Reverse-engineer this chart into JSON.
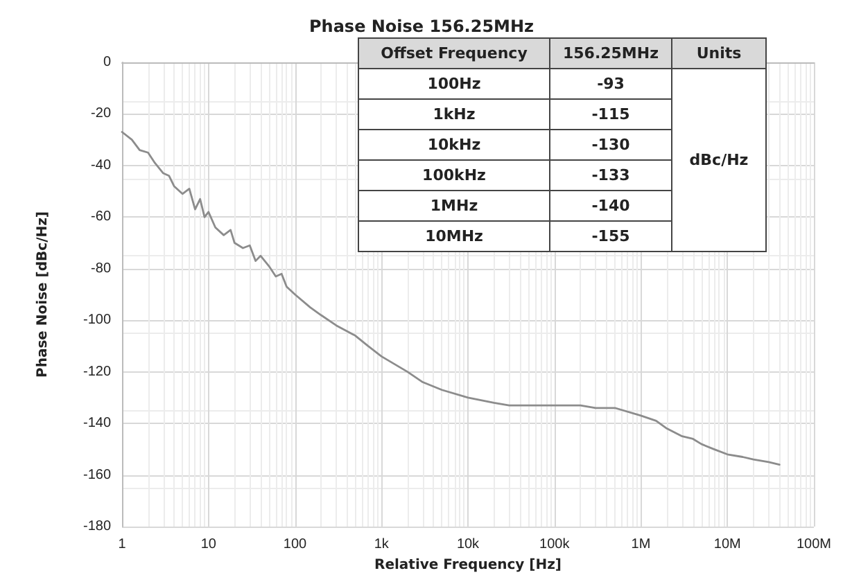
{
  "chart_data": {
    "type": "line",
    "title": "Phase Noise 156.25MHz",
    "xlabel": "Relative Frequency [Hz]",
    "ylabel": "Phase Noise [dBc/Hz]",
    "series": [
      {
        "color": "#8c8c8c",
        "x": [
          1,
          1.3,
          1.6,
          2,
          2.4,
          3,
          3.5,
          4,
          5,
          6,
          7,
          8,
          9,
          10,
          12,
          15,
          18,
          20,
          25,
          30,
          35,
          40,
          50,
          60,
          70,
          80,
          100,
          150,
          200,
          300,
          500,
          700,
          1000,
          2000,
          3000,
          5000,
          10000,
          20000,
          30000,
          50000,
          100000,
          200000,
          300000,
          500000,
          1000000,
          1500000,
          2000000,
          3000000,
          4000000,
          5000000,
          7000000,
          10000000,
          15000000,
          20000000,
          30000000,
          40000000
        ],
        "values": [
          -27,
          -30,
          -34,
          -35,
          -39,
          -43,
          -44,
          -48,
          -51,
          -49,
          -57,
          -53,
          -60,
          -58,
          -64,
          -67,
          -65,
          -70,
          -72,
          -71,
          -77,
          -75,
          -79,
          -83,
          -82,
          -87,
          -90,
          -95,
          -98,
          -102,
          -106,
          -110,
          -114,
          -120,
          -124,
          -127,
          -130,
          -132,
          -133,
          -133,
          -133,
          -133,
          -134,
          -134,
          -137,
          -139,
          -142,
          -145,
          -146,
          -148,
          -150,
          -152,
          -153,
          -154,
          -155,
          -156
        ]
      }
    ],
    "xlim": [
      1,
      100000000
    ],
    "ylim": [
      -180,
      0
    ],
    "xticks": [
      1,
      10,
      100,
      {
        "value": 1000,
        "label": "1k"
      },
      {
        "value": 10000,
        "label": "10k"
      },
      {
        "value": 100000,
        "label": "100k"
      },
      {
        "value": 1000000,
        "label": "1M"
      },
      {
        "value": 10000000,
        "label": "10M"
      },
      {
        "value": 100000000,
        "label": "100M"
      }
    ],
    "yticks": [
      -180,
      -160,
      -140,
      -120,
      -100,
      -80,
      -60,
      -40,
      -20,
      0
    ],
    "log": "x",
    "grid": true,
    "marker": "none",
    "line_style": "solid",
    "annotations": [
      "Offset Frequency",
      "156.25MHz",
      "Units",
      "100Hz",
      "-93",
      "1kHz",
      "-115",
      "10kHz",
      "-130",
      "100kHz",
      "-133",
      "1MHz",
      "-140",
      "10MHz",
      "-155",
      "dBc/Hz"
    ]
  }
}
